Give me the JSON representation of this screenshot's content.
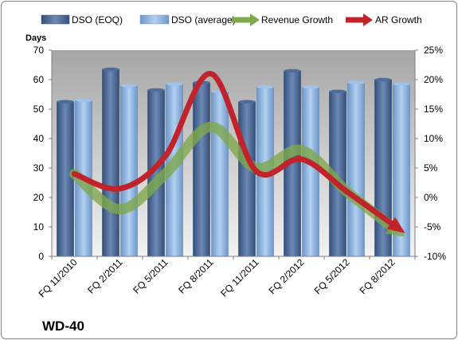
{
  "chart_data": {
    "type": "bar",
    "company": "WD-40",
    "left_axis_label": "Days",
    "categories": [
      "FQ 11/2010",
      "FQ 2/2011",
      "FQ 5/2011",
      "FQ 8/2011",
      "FQ 11/2011",
      "FQ 2/2012",
      "FQ 5/2012",
      "FQ 8/2012"
    ],
    "series": [
      {
        "name": "DSO (EOQ)",
        "type": "bar",
        "axis": "left",
        "color": "#4f6d99",
        "values": [
          52.5,
          63.5,
          56.5,
          59.0,
          52.5,
          63.0,
          56.0,
          60.0
        ]
      },
      {
        "name": "DSO (average)",
        "type": "bar",
        "axis": "left",
        "color": "#8eb3e1",
        "values": [
          53.0,
          58.0,
          58.5,
          56.0,
          57.5,
          57.5,
          59.0,
          58.5
        ]
      },
      {
        "name": "Revenue Growth",
        "type": "line",
        "axis": "right",
        "color": "#7ea84b",
        "values": [
          4.0,
          -2.0,
          4.0,
          12.0,
          5.0,
          8.0,
          1.0,
          -5.0
        ]
      },
      {
        "name": "AR Growth",
        "type": "line",
        "axis": "right",
        "color": "#c0242a",
        "values": [
          4.0,
          1.5,
          7.0,
          21.0,
          4.5,
          6.5,
          1.0,
          -4.5
        ]
      }
    ],
    "left_axis": {
      "min": 0,
      "max": 70,
      "step": 10,
      "ticks": [
        "0",
        "10",
        "20",
        "30",
        "40",
        "50",
        "60",
        "70"
      ]
    },
    "right_axis": {
      "min": -10,
      "max": 25,
      "step": 5,
      "ticks": [
        "-10%",
        "-5%",
        "0%",
        "5%",
        "10%",
        "15%",
        "20%",
        "25%"
      ]
    },
    "grid": false,
    "legend_position": "top"
  }
}
